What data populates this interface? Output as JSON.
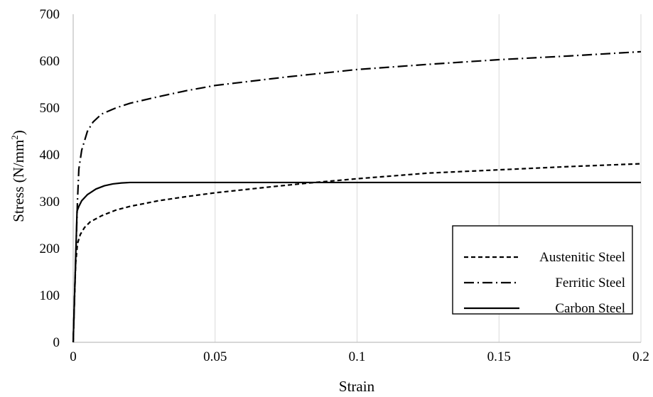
{
  "chart_data": {
    "type": "line",
    "xlabel": "Strain",
    "ylabel": "Stress (N/mm",
    "ylabel_superscript": "2",
    "ylabel_suffix": ")",
    "xlim": [
      0,
      0.2
    ],
    "ylim": [
      0,
      700
    ],
    "x_ticks": [
      "0",
      "0.05",
      "0.1",
      "0.15",
      "0.2"
    ],
    "y_ticks": [
      "0",
      "100",
      "200",
      "300",
      "400",
      "500",
      "600",
      "700"
    ],
    "grid": "vertical",
    "legend_position": "right",
    "series": [
      {
        "name": "Austenitic Steel",
        "style": "dashed",
        "color": "#000000",
        "points": [
          [
            0,
            0
          ],
          [
            0.0003,
            60
          ],
          [
            0.0006,
            120
          ],
          [
            0.0009,
            170
          ],
          [
            0.0015,
            210
          ],
          [
            0.0025,
            230
          ],
          [
            0.004,
            245
          ],
          [
            0.006,
            257
          ],
          [
            0.01,
            270
          ],
          [
            0.015,
            282
          ],
          [
            0.02,
            290
          ],
          [
            0.03,
            302
          ],
          [
            0.04,
            311
          ],
          [
            0.05,
            319
          ],
          [
            0.07,
            332
          ],
          [
            0.085,
            341
          ],
          [
            0.1,
            349
          ],
          [
            0.125,
            361
          ],
          [
            0.15,
            368
          ],
          [
            0.175,
            375
          ],
          [
            0.2,
            381
          ]
        ]
      },
      {
        "name": "Ferritic Steel",
        "style": "dash-dot",
        "color": "#000000",
        "points": [
          [
            0,
            0
          ],
          [
            0.0005,
            100
          ],
          [
            0.001,
            200
          ],
          [
            0.0015,
            300
          ],
          [
            0.002,
            370
          ],
          [
            0.003,
            410
          ],
          [
            0.005,
            450
          ],
          [
            0.007,
            470
          ],
          [
            0.01,
            487
          ],
          [
            0.015,
            500
          ],
          [
            0.02,
            510
          ],
          [
            0.03,
            524
          ],
          [
            0.04,
            537
          ],
          [
            0.05,
            548
          ],
          [
            0.075,
            566
          ],
          [
            0.1,
            582
          ],
          [
            0.125,
            593
          ],
          [
            0.15,
            603
          ],
          [
            0.175,
            611
          ],
          [
            0.2,
            620
          ]
        ]
      },
      {
        "name": "Carbon Steel",
        "style": "solid",
        "color": "#000000",
        "points": [
          [
            0,
            0
          ],
          [
            0.00068,
            140
          ],
          [
            0.00136,
            280
          ],
          [
            0.002,
            290
          ],
          [
            0.003,
            302
          ],
          [
            0.005,
            315
          ],
          [
            0.008,
            327
          ],
          [
            0.011,
            334
          ],
          [
            0.014,
            338
          ],
          [
            0.017,
            340
          ],
          [
            0.02,
            341
          ],
          [
            0.05,
            341
          ],
          [
            0.1,
            341
          ],
          [
            0.15,
            341
          ],
          [
            0.2,
            341
          ]
        ]
      }
    ]
  }
}
